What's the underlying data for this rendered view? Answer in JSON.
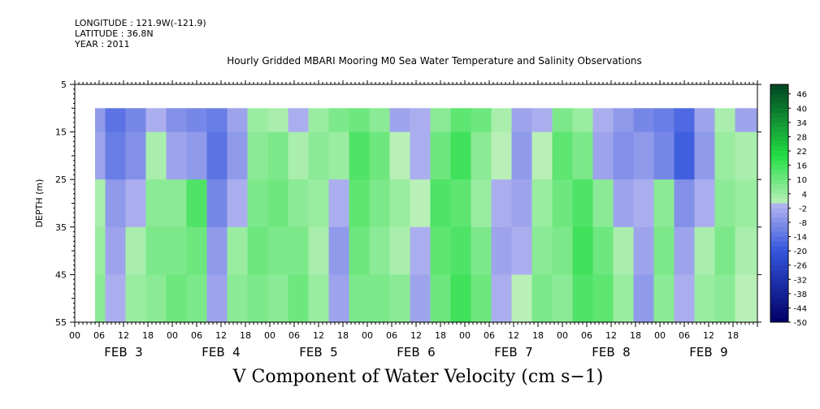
{
  "meta": {
    "longitude": "LONGITUDE : 121.9W(-121.9)",
    "latitude": "LATITUDE : 36.8N",
    "year": "YEAR : 2011"
  },
  "chart_data": {
    "type": "heatmap",
    "title": "Hourly Gridded MBARI Mooring M0 Sea Water Temperature and Salinity Observations",
    "xlabel": "",
    "ylabel": "DEPTH (m)",
    "caption": "V Component of Water Velocity (cm s−1)",
    "ylim": [
      5,
      55
    ],
    "y_inverted": true,
    "y_ticks": [
      5,
      15,
      25,
      35,
      45,
      55
    ],
    "y_tick_labels": [
      "5",
      "15",
      "25",
      "35",
      "45",
      "55"
    ],
    "x_hour_labels": [
      "00",
      "06",
      "12",
      "18",
      "00",
      "06",
      "12",
      "18",
      "00",
      "06",
      "12",
      "18",
      "00",
      "06",
      "12",
      "18",
      "00",
      "06",
      "12",
      "18",
      "00",
      "06",
      "12",
      "18",
      "00",
      "06",
      "12",
      "18"
    ],
    "x_day_labels": [
      "FEB  3",
      "FEB  4",
      "FEB  5",
      "FEB  6",
      "FEB  7",
      "FEB  8",
      "FEB  9"
    ],
    "x_hours_range": [
      0,
      168
    ],
    "data_start_hour": 5,
    "data_depth_range": [
      10,
      55
    ],
    "colorbar": {
      "min": -50,
      "max": 50,
      "step": 2,
      "labels": [
        "46",
        "40",
        "34",
        "28",
        "22",
        "16",
        "10",
        "4",
        "-2",
        "-8",
        "-14",
        "-20",
        "-26",
        "-32",
        "-38",
        "-44",
        "-50"
      ]
    },
    "column_hours": [
      5,
      10,
      15,
      20,
      25,
      30,
      35,
      40,
      45,
      50,
      55,
      60,
      65,
      70,
      75,
      80,
      85,
      90,
      95,
      100,
      105,
      110,
      115,
      120,
      125,
      130,
      135,
      140,
      145,
      150,
      155,
      160,
      165
    ],
    "row_depths": [
      10,
      20,
      30,
      40,
      50
    ],
    "values": [
      [
        -6,
        -14,
        -10,
        -2,
        -8,
        -10,
        -12,
        -4,
        4,
        2,
        -2,
        4,
        8,
        10,
        6,
        -4,
        -2,
        6,
        12,
        10,
        2,
        -4,
        -2,
        8,
        4,
        -2,
        -6,
        -10,
        -12,
        -16,
        -4,
        2,
        -4
      ],
      [
        -4,
        -12,
        -8,
        2,
        -4,
        -6,
        -14,
        -6,
        6,
        8,
        2,
        6,
        4,
        14,
        10,
        0,
        -2,
        10,
        16,
        6,
        0,
        -6,
        0,
        12,
        8,
        -4,
        -8,
        -6,
        -10,
        -18,
        -6,
        4,
        2
      ],
      [
        2,
        -6,
        -2,
        6,
        6,
        14,
        -10,
        -2,
        8,
        10,
        6,
        4,
        -2,
        12,
        8,
        4,
        0,
        14,
        12,
        4,
        -2,
        -4,
        4,
        10,
        14,
        6,
        -4,
        -2,
        6,
        -8,
        -2,
        6,
        4
      ],
      [
        4,
        -4,
        2,
        8,
        8,
        10,
        -6,
        4,
        10,
        8,
        8,
        2,
        -6,
        10,
        6,
        2,
        -2,
        12,
        14,
        8,
        -4,
        -2,
        6,
        8,
        16,
        10,
        2,
        -4,
        8,
        -4,
        2,
        8,
        2
      ],
      [
        6,
        -2,
        4,
        6,
        10,
        8,
        -4,
        6,
        8,
        6,
        10,
        4,
        -4,
        8,
        8,
        6,
        -4,
        10,
        16,
        10,
        -2,
        0,
        8,
        6,
        14,
        12,
        4,
        -6,
        6,
        -2,
        4,
        6,
        0
      ]
    ],
    "colors": {
      "negative_dark": "#000066",
      "negative_mid": "#3355dd",
      "negative_light": "#b8b8f0",
      "positive_light": "#b8f0b8",
      "positive_mid": "#22dd44",
      "positive_dark": "#004422"
    }
  }
}
